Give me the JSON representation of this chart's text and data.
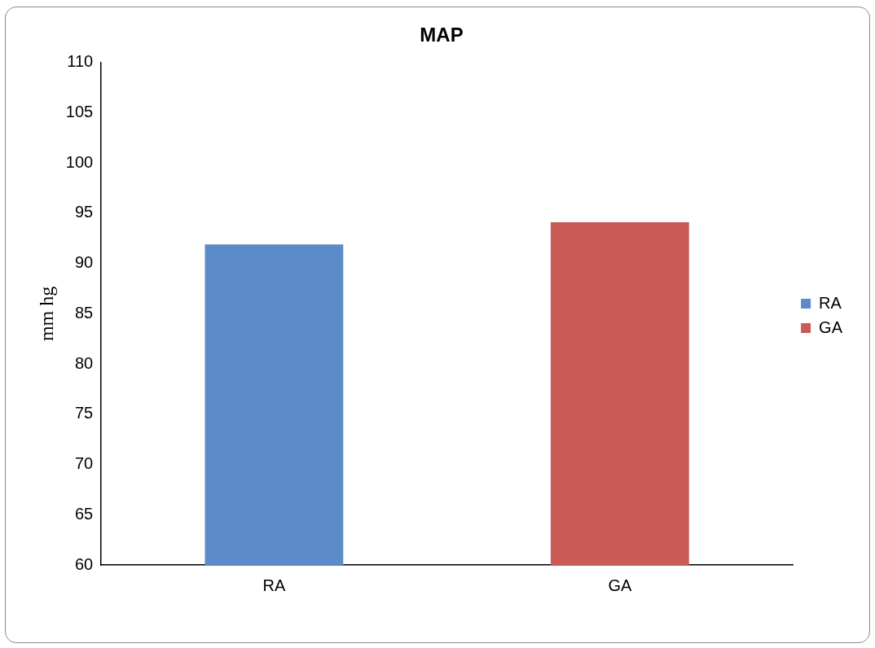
{
  "chart_data": {
    "type": "bar",
    "title": "MAP",
    "ylabel": "mm hg",
    "categories": [
      "RA",
      "GA"
    ],
    "series": [
      {
        "name": "RA",
        "color": "#5b8bc8",
        "values": [
          91.9,
          null
        ]
      },
      {
        "name": "GA",
        "color": "#cb5a56",
        "values": [
          null,
          94.1
        ]
      }
    ],
    "ylim": [
      60,
      110
    ],
    "yticks": [
      60,
      65,
      70,
      75,
      80,
      85,
      90,
      95,
      100,
      105,
      110
    ],
    "legend": "right"
  }
}
